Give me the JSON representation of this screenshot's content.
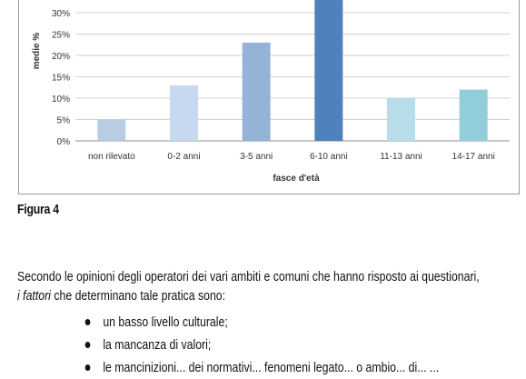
{
  "figure_caption": "Figura 4",
  "paragraph": {
    "line1": "Secondo le opinioni degli operatori dei vari ambiti e comuni che hanno risposto ai questionari,",
    "line2_italic": "i fattori",
    "line2_rest": " che determinano tale pratica sono:"
  },
  "bullets": [
    "un basso livello culturale;",
    "la mancanza di valori;",
    "le mancinizioni... dei normativi... fenomeni legato... o ambio... di... ..."
  ],
  "chart_data": {
    "type": "bar",
    "xlabel": "fasce d'età",
    "ylabel": "medie %",
    "ylim": [
      0,
      35
    ],
    "yticks": [
      "0%",
      "5%",
      "10%",
      "15%",
      "20%",
      "25%",
      "30%"
    ],
    "grid": true,
    "categories": [
      "non rilevato",
      "0-2 anni",
      "3-5 anni",
      "6-10 anni",
      "11-13 anni",
      "14-17 anni"
    ],
    "values": [
      5,
      13,
      23,
      35,
      10,
      12
    ],
    "colors": [
      "#b8cce4",
      "#c6d9f1",
      "#95b3d7",
      "#4f81bd",
      "#b7dee8",
      "#92cddc"
    ]
  }
}
